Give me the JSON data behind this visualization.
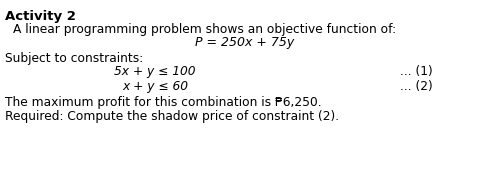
{
  "background_color": "#ffffff",
  "title": "Activity 2",
  "line1": "A linear programming problem shows an objective function of:",
  "line2": "P = 250x + 75y",
  "line3": "Subject to constraints:",
  "constraint1_left": "5x + y ≤ 100",
  "constraint1_right": "... (1)",
  "constraint2_left": "x + y ≤ 60",
  "constraint2_right": "... (2)",
  "line_profit": "The maximum profit for this combination is ₱6,250.",
  "line_required": "Required: Compute the shadow price of constraint (2).",
  "title_fontsize": 9.5,
  "body_fontsize": 8.8,
  "math_fontsize": 9.0
}
